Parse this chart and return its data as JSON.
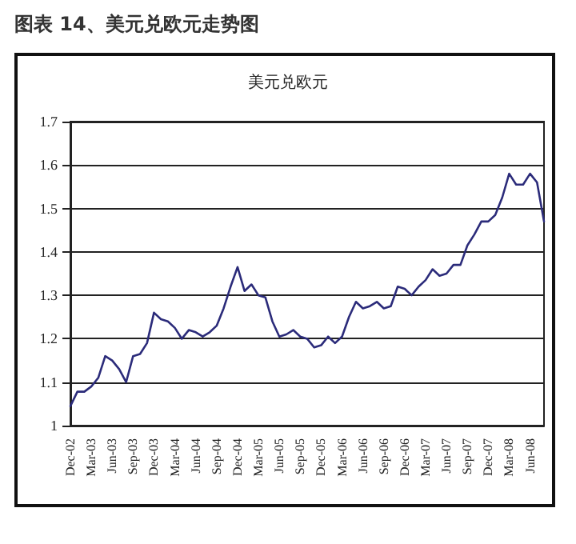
{
  "chart_data": {
    "type": "line",
    "title": "图表 14、美元兑欧元走势图",
    "subtitle": "美元兑欧元",
    "categories": [
      "Dec-02",
      null,
      null,
      "Mar-03",
      null,
      null,
      "Jun-03",
      null,
      null,
      "Sep-03",
      null,
      null,
      "Dec-03",
      null,
      null,
      "Mar-04",
      null,
      null,
      "Jun-04",
      null,
      null,
      "Sep-04",
      null,
      null,
      "Dec-04",
      null,
      null,
      "Mar-05",
      null,
      null,
      "Jun-05",
      null,
      null,
      "Sep-05",
      null,
      null,
      "Dec-05",
      null,
      null,
      "Mar-06",
      null,
      null,
      "Jun-06",
      null,
      null,
      "Sep-06",
      null,
      null,
      "Dec-06",
      null,
      null,
      "Mar-07",
      null,
      null,
      "Jun-07",
      null,
      null,
      "Sep-07",
      null,
      null,
      "Dec-07",
      null,
      null,
      "Mar-08",
      null,
      null,
      "Jun-08",
      null,
      null
    ],
    "series": [
      {
        "color": "#2b2b7a",
        "values": [
          1.045,
          1.078,
          1.078,
          1.09,
          1.11,
          1.16,
          1.15,
          1.13,
          1.1,
          1.16,
          1.165,
          1.19,
          1.26,
          1.245,
          1.24,
          1.225,
          1.2,
          1.22,
          1.215,
          1.205,
          1.215,
          1.23,
          1.27,
          1.32,
          1.365,
          1.31,
          1.325,
          1.3,
          1.295,
          1.24,
          1.205,
          1.21,
          1.22,
          1.205,
          1.2,
          1.18,
          1.185,
          1.205,
          1.19,
          1.205,
          1.25,
          1.285,
          1.27,
          1.275,
          1.285,
          1.27,
          1.275,
          1.32,
          1.315,
          1.3,
          1.32,
          1.335,
          1.36,
          1.345,
          1.35,
          1.37,
          1.37,
          1.415,
          1.44,
          1.47,
          1.47,
          1.485,
          1.525,
          1.58,
          1.555,
          1.555,
          1.58,
          1.56,
          1.47
        ]
      }
    ],
    "ylim": [
      1,
      1.7
    ],
    "yticks": [
      1,
      1.1,
      1.2,
      1.3,
      1.4,
      1.5,
      1.6,
      1.7
    ],
    "grid": "y",
    "marker": "none",
    "line_style": "solid"
  }
}
